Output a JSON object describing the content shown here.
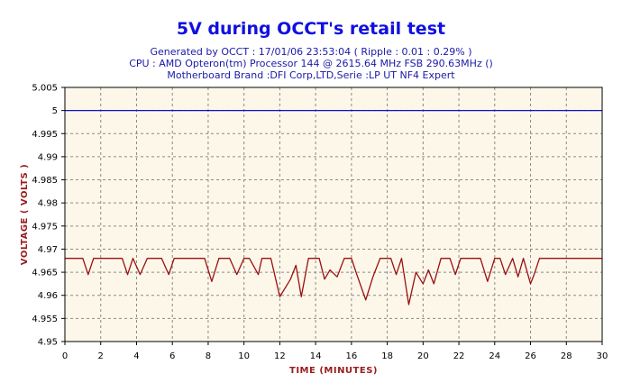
{
  "chart_data": {
    "type": "line",
    "title": "5V during OCCT's retail test",
    "subtitle_lines": [
      "Generated by OCCT : 17/01/06 23:53:04 ( Ripple : 0.01 : 0.29% )",
      "CPU : AMD Opteron(tm) Processor 144    @ 2615.64 MHz FSB 290.63MHz ()",
      "Motherboard Brand :DFI Corp,LTD,Serie :LP UT NF4 Expert"
    ],
    "xlabel": "TIME (MINUTES)",
    "ylabel": "VOLTAGE ( VOLTS )",
    "xlim": [
      0,
      30
    ],
    "ylim": [
      4.95,
      5.005
    ],
    "xticks": [
      "0",
      "2",
      "4",
      "6",
      "8",
      "10",
      "12",
      "14",
      "16",
      "18",
      "20",
      "22",
      "24",
      "26",
      "28",
      "30"
    ],
    "yticks": [
      "4.95",
      "4.955",
      "4.96",
      "4.965",
      "4.97",
      "4.975",
      "4.98",
      "4.985",
      "4.99",
      "4.995",
      "5",
      "5.005"
    ],
    "grid": true,
    "reference_line": {
      "y": 5,
      "color": "#1010d0"
    },
    "series": [
      {
        "color": "#9a1010",
        "x": [
          0,
          1.0,
          1.3,
          1.6,
          3.2,
          3.5,
          3.8,
          4.2,
          4.6,
          5.4,
          5.8,
          6.1,
          7.8,
          8.2,
          8.6,
          9.2,
          9.6,
          10.0,
          10.3,
          10.8,
          11.0,
          11.5,
          12.0,
          12.6,
          12.9,
          13.2,
          13.6,
          14.2,
          14.5,
          14.8,
          15.2,
          15.6,
          16.0,
          16.3,
          16.8,
          17.2,
          17.6,
          18.2,
          18.5,
          18.8,
          19.2,
          19.6,
          20.0,
          20.3,
          20.6,
          21.0,
          21.5,
          21.8,
          22.1,
          23.2,
          23.6,
          24.0,
          24.3,
          24.6,
          25.0,
          25.3,
          25.6,
          26.0,
          26.2,
          26.5,
          30
        ],
        "y": [
          4.968,
          4.968,
          4.9645,
          4.968,
          4.968,
          4.9645,
          4.968,
          4.9645,
          4.968,
          4.968,
          4.9645,
          4.968,
          4.968,
          4.963,
          4.968,
          4.968,
          4.9645,
          4.968,
          4.968,
          4.9645,
          4.968,
          4.968,
          4.9597,
          4.9635,
          4.9665,
          4.9597,
          4.968,
          4.968,
          4.9635,
          4.9655,
          4.964,
          4.968,
          4.968,
          4.9645,
          4.959,
          4.964,
          4.968,
          4.968,
          4.9645,
          4.968,
          4.958,
          4.965,
          4.9625,
          4.9655,
          4.9625,
          4.968,
          4.968,
          4.9645,
          4.968,
          4.968,
          4.963,
          4.968,
          4.968,
          4.9645,
          4.968,
          4.964,
          4.968,
          4.9625,
          4.9645,
          4.968,
          4.968
        ]
      }
    ]
  }
}
